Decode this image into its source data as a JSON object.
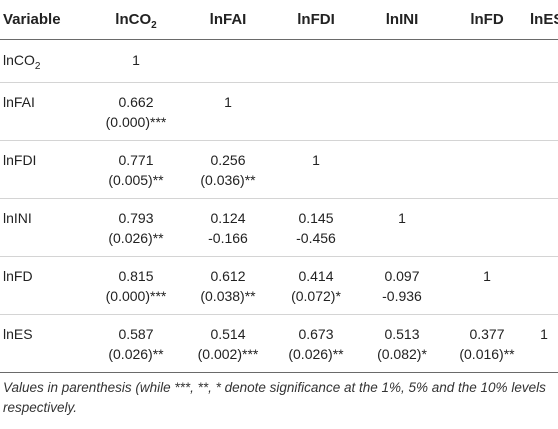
{
  "table": {
    "columns": [
      {
        "base": "Variable",
        "sub": ""
      },
      {
        "base": "lnCO",
        "sub": "2"
      },
      {
        "base": "lnFAI",
        "sub": ""
      },
      {
        "base": "lnFDI",
        "sub": ""
      },
      {
        "base": "lnINI",
        "sub": ""
      },
      {
        "base": "lnFD",
        "sub": ""
      },
      {
        "base": "lnES",
        "sub": ""
      }
    ],
    "rows": [
      {
        "variable": {
          "base": "lnCO",
          "sub": "2"
        },
        "cells": [
          {
            "value": "1",
            "sig": ""
          },
          {
            "value": "",
            "sig": ""
          },
          {
            "value": "",
            "sig": ""
          },
          {
            "value": "",
            "sig": ""
          },
          {
            "value": "",
            "sig": ""
          },
          {
            "value": "",
            "sig": ""
          }
        ]
      },
      {
        "variable": {
          "base": "lnFAI",
          "sub": ""
        },
        "cells": [
          {
            "value": "0.662",
            "sig": "(0.000)***"
          },
          {
            "value": "1",
            "sig": ""
          },
          {
            "value": "",
            "sig": ""
          },
          {
            "value": "",
            "sig": ""
          },
          {
            "value": "",
            "sig": ""
          },
          {
            "value": "",
            "sig": ""
          }
        ]
      },
      {
        "variable": {
          "base": "lnFDI",
          "sub": ""
        },
        "cells": [
          {
            "value": "0.771",
            "sig": "(0.005)**"
          },
          {
            "value": "0.256",
            "sig": "(0.036)**"
          },
          {
            "value": "1",
            "sig": ""
          },
          {
            "value": "",
            "sig": ""
          },
          {
            "value": "",
            "sig": ""
          },
          {
            "value": "",
            "sig": ""
          }
        ]
      },
      {
        "variable": {
          "base": "lnINI",
          "sub": ""
        },
        "cells": [
          {
            "value": "0.793",
            "sig": "(0.026)**"
          },
          {
            "value": "0.124",
            "sig": "-0.166"
          },
          {
            "value": "0.145",
            "sig": "-0.456"
          },
          {
            "value": "1",
            "sig": ""
          },
          {
            "value": "",
            "sig": ""
          },
          {
            "value": "",
            "sig": ""
          }
        ]
      },
      {
        "variable": {
          "base": "lnFD",
          "sub": ""
        },
        "cells": [
          {
            "value": "0.815",
            "sig": "(0.000)***"
          },
          {
            "value": "0.612",
            "sig": "(0.038)**"
          },
          {
            "value": "0.414",
            "sig": "(0.072)*"
          },
          {
            "value": "0.097",
            "sig": "-0.936"
          },
          {
            "value": "1",
            "sig": ""
          },
          {
            "value": "",
            "sig": ""
          }
        ]
      },
      {
        "variable": {
          "base": "lnES",
          "sub": ""
        },
        "cells": [
          {
            "value": "0.587",
            "sig": "(0.026)**"
          },
          {
            "value": "0.514",
            "sig": "(0.002)***"
          },
          {
            "value": "0.673",
            "sig": "(0.026)**"
          },
          {
            "value": "0.513",
            "sig": "(0.082)*"
          },
          {
            "value": "0.377",
            "sig": "(0.016)**"
          },
          {
            "value": "1",
            "sig": ""
          }
        ]
      }
    ],
    "note": "Values in parenthesis (while ***, **, * denote significance at the 1%, 5% and the 10% levels respectively."
  }
}
